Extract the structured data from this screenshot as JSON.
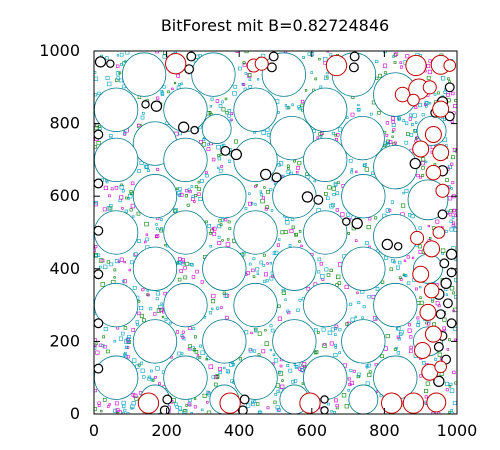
{
  "chart_data": {
    "type": "scatter",
    "title": "BitForest mit B=0.82724846",
    "xlabel": "",
    "ylabel": "",
    "xlim": [
      0,
      1000
    ],
    "ylim": [
      0,
      1000
    ],
    "x_ticks": [
      "0",
      "200",
      "400",
      "600",
      "800",
      "1000"
    ],
    "y_ticks": [
      "0",
      "200",
      "400",
      "600",
      "800",
      "1000"
    ],
    "grid": false,
    "colors": {
      "large_circle": "#007a8c",
      "small_circle": "#000000",
      "red_circle": "#c00000",
      "fringe_magenta": "#cc00cc",
      "fringe_cyan": "#00a0c0",
      "fringe_green": "#008000"
    },
    "series": [
      {
        "circles": [
          {
            "x": 138,
            "y": 935,
            "r": 60
          },
          {
            "x": 329,
            "y": 935,
            "r": 60
          },
          {
            "x": 523,
            "y": 935,
            "r": 60
          },
          {
            "x": 716,
            "y": 935,
            "r": 60
          },
          {
            "x": 61,
            "y": 838,
            "r": 60
          },
          {
            "x": 252,
            "y": 838,
            "r": 60
          },
          {
            "x": 445,
            "y": 838,
            "r": 60
          },
          {
            "x": 637,
            "y": 838,
            "r": 60
          },
          {
            "x": 168,
            "y": 745,
            "r": 60
          },
          {
            "x": 338,
            "y": 785,
            "r": 40
          },
          {
            "x": 545,
            "y": 760,
            "r": 60
          },
          {
            "x": 740,
            "y": 760,
            "r": 60
          },
          {
            "x": 61,
            "y": 700,
            "r": 60
          },
          {
            "x": 252,
            "y": 700,
            "r": 60
          },
          {
            "x": 445,
            "y": 700,
            "r": 60
          },
          {
            "x": 637,
            "y": 700,
            "r": 60
          },
          {
            "x": 168,
            "y": 600,
            "r": 60
          },
          {
            "x": 359,
            "y": 600,
            "r": 60
          },
          {
            "x": 552,
            "y": 600,
            "r": 60
          },
          {
            "x": 742,
            "y": 600,
            "r": 60
          },
          {
            "x": 61,
            "y": 500,
            "r": 60
          },
          {
            "x": 252,
            "y": 500,
            "r": 60
          },
          {
            "x": 445,
            "y": 500,
            "r": 60
          },
          {
            "x": 637,
            "y": 500,
            "r": 60
          },
          {
            "x": 168,
            "y": 400,
            "r": 60
          },
          {
            "x": 359,
            "y": 400,
            "r": 60
          },
          {
            "x": 552,
            "y": 400,
            "r": 60
          },
          {
            "x": 742,
            "y": 400,
            "r": 60
          },
          {
            "x": 61,
            "y": 300,
            "r": 60
          },
          {
            "x": 252,
            "y": 300,
            "r": 60
          },
          {
            "x": 445,
            "y": 300,
            "r": 60
          },
          {
            "x": 637,
            "y": 300,
            "r": 60
          },
          {
            "x": 168,
            "y": 200,
            "r": 60
          },
          {
            "x": 359,
            "y": 200,
            "r": 60
          },
          {
            "x": 552,
            "y": 200,
            "r": 60
          },
          {
            "x": 742,
            "y": 200,
            "r": 60
          },
          {
            "x": 61,
            "y": 100,
            "r": 60
          },
          {
            "x": 252,
            "y": 100,
            "r": 60
          },
          {
            "x": 445,
            "y": 100,
            "r": 60
          },
          {
            "x": 637,
            "y": 100,
            "r": 60
          },
          {
            "x": 168,
            "y": 40,
            "r": 40
          },
          {
            "x": 359,
            "y": 40,
            "r": 40
          },
          {
            "x": 552,
            "y": 40,
            "r": 40
          },
          {
            "x": 742,
            "y": 40,
            "r": 40
          },
          {
            "x": 830,
            "y": 880,
            "r": 60
          },
          {
            "x": 830,
            "y": 680,
            "r": 60
          },
          {
            "x": 830,
            "y": 490,
            "r": 60
          },
          {
            "x": 830,
            "y": 300,
            "r": 60
          },
          {
            "x": 830,
            "y": 100,
            "r": 60
          },
          {
            "x": 930,
            "y": 780,
            "r": 40
          },
          {
            "x": 920,
            "y": 590,
            "r": 55
          },
          {
            "x": 920,
            "y": 400,
            "r": 40
          },
          {
            "x": 920,
            "y": 200,
            "r": 40
          }
        ]
      },
      {
        "circles": [
          {
            "x": 18,
            "y": 970,
            "r": 14
          },
          {
            "x": 45,
            "y": 965,
            "r": 10
          },
          {
            "x": 268,
            "y": 985,
            "r": 12
          },
          {
            "x": 262,
            "y": 950,
            "r": 12
          },
          {
            "x": 495,
            "y": 985,
            "r": 12
          },
          {
            "x": 490,
            "y": 955,
            "r": 12
          },
          {
            "x": 718,
            "y": 985,
            "r": 12
          },
          {
            "x": 716,
            "y": 955,
            "r": 12
          },
          {
            "x": 142,
            "y": 853,
            "r": 10
          },
          {
            "x": 172,
            "y": 848,
            "r": 14
          },
          {
            "x": 247,
            "y": 790,
            "r": 14
          },
          {
            "x": 277,
            "y": 782,
            "r": 10
          },
          {
            "x": 362,
            "y": 725,
            "r": 12
          },
          {
            "x": 392,
            "y": 715,
            "r": 14
          },
          {
            "x": 473,
            "y": 660,
            "r": 14
          },
          {
            "x": 503,
            "y": 652,
            "r": 12
          },
          {
            "x": 588,
            "y": 598,
            "r": 14
          },
          {
            "x": 618,
            "y": 590,
            "r": 12
          },
          {
            "x": 695,
            "y": 530,
            "r": 10
          },
          {
            "x": 725,
            "y": 525,
            "r": 14
          },
          {
            "x": 808,
            "y": 467,
            "r": 14
          },
          {
            "x": 838,
            "y": 462,
            "r": 10
          },
          {
            "x": 885,
            "y": 690,
            "r": 14
          },
          {
            "x": 960,
            "y": 670,
            "r": 14
          },
          {
            "x": 960,
            "y": 550,
            "r": 12
          },
          {
            "x": 985,
            "y": 440,
            "r": 14
          },
          {
            "x": 965,
            "y": 415,
            "r": 12
          },
          {
            "x": 985,
            "y": 390,
            "r": 12
          },
          {
            "x": 970,
            "y": 360,
            "r": 14
          },
          {
            "x": 950,
            "y": 330,
            "r": 14
          },
          {
            "x": 975,
            "y": 305,
            "r": 12
          },
          {
            "x": 955,
            "y": 275,
            "r": 12
          },
          {
            "x": 985,
            "y": 250,
            "r": 12
          },
          {
            "x": 960,
            "y": 215,
            "r": 12
          },
          {
            "x": 950,
            "y": 185,
            "r": 12
          },
          {
            "x": 970,
            "y": 150,
            "r": 12
          },
          {
            "x": 950,
            "y": 90,
            "r": 14
          },
          {
            "x": 12,
            "y": 770,
            "r": 12
          },
          {
            "x": 12,
            "y": 635,
            "r": 12
          },
          {
            "x": 12,
            "y": 505,
            "r": 12
          },
          {
            "x": 12,
            "y": 385,
            "r": 12
          },
          {
            "x": 12,
            "y": 250,
            "r": 12
          },
          {
            "x": 12,
            "y": 125,
            "r": 12
          },
          {
            "x": 202,
            "y": 40,
            "r": 12
          },
          {
            "x": 195,
            "y": 10,
            "r": 12
          },
          {
            "x": 415,
            "y": 40,
            "r": 12
          },
          {
            "x": 410,
            "y": 10,
            "r": 12
          },
          {
            "x": 635,
            "y": 40,
            "r": 10
          },
          {
            "x": 635,
            "y": 10,
            "r": 10
          },
          {
            "x": 960,
            "y": 860,
            "r": 14
          },
          {
            "x": 980,
            "y": 900,
            "r": 12
          },
          {
            "x": 980,
            "y": 820,
            "r": 12
          },
          {
            "x": 940,
            "y": 830,
            "r": 12
          }
        ]
      },
      {
        "circles": [
          {
            "x": 225,
            "y": 965,
            "r": 28
          },
          {
            "x": 440,
            "y": 960,
            "r": 18
          },
          {
            "x": 462,
            "y": 965,
            "r": 18
          },
          {
            "x": 668,
            "y": 960,
            "r": 28
          },
          {
            "x": 887,
            "y": 960,
            "r": 28
          },
          {
            "x": 955,
            "y": 962,
            "r": 26
          },
          {
            "x": 895,
            "y": 895,
            "r": 28
          },
          {
            "x": 925,
            "y": 900,
            "r": 18
          },
          {
            "x": 850,
            "y": 880,
            "r": 20
          },
          {
            "x": 880,
            "y": 865,
            "r": 16
          },
          {
            "x": 955,
            "y": 840,
            "r": 22
          },
          {
            "x": 935,
            "y": 770,
            "r": 22
          },
          {
            "x": 900,
            "y": 730,
            "r": 22
          },
          {
            "x": 955,
            "y": 720,
            "r": 22
          },
          {
            "x": 935,
            "y": 665,
            "r": 20
          },
          {
            "x": 960,
            "y": 615,
            "r": 18
          },
          {
            "x": 950,
            "y": 500,
            "r": 16
          },
          {
            "x": 890,
            "y": 485,
            "r": 18
          },
          {
            "x": 930,
            "y": 455,
            "r": 22
          },
          {
            "x": 900,
            "y": 385,
            "r": 22
          },
          {
            "x": 930,
            "y": 340,
            "r": 20
          },
          {
            "x": 920,
            "y": 280,
            "r": 22
          },
          {
            "x": 935,
            "y": 220,
            "r": 22
          },
          {
            "x": 905,
            "y": 175,
            "r": 22
          },
          {
            "x": 925,
            "y": 115,
            "r": 22
          },
          {
            "x": 955,
            "y": 130,
            "r": 16
          },
          {
            "x": 150,
            "y": 30,
            "r": 28
          },
          {
            "x": 375,
            "y": 30,
            "r": 28
          },
          {
            "x": 595,
            "y": 30,
            "r": 28
          },
          {
            "x": 820,
            "y": 30,
            "r": 28
          },
          {
            "x": 880,
            "y": 30,
            "r": 28
          },
          {
            "x": 943,
            "y": 32,
            "r": 26
          },
          {
            "x": 980,
            "y": 960,
            "r": 16
          }
        ]
      }
    ]
  }
}
